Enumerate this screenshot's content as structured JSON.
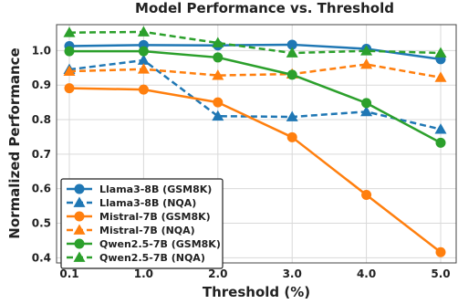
{
  "chart_data": {
    "type": "line",
    "title": "Model Performance vs. Threshold",
    "xlabel": "Threshold (%)",
    "ylabel": "Normalized Performance",
    "x": [
      0.1,
      1.0,
      2.0,
      3.0,
      4.0,
      5.0
    ],
    "x_tick_labels": [
      "0.1",
      "1.0",
      "2.0",
      "3.0",
      "4.0",
      "5.0"
    ],
    "y_ticks": [
      0.4,
      0.5,
      0.6,
      0.7,
      0.8,
      0.9,
      1.0
    ],
    "y_tick_labels": [
      "0.4",
      "0.5",
      "0.6",
      "0.7",
      "0.8",
      "0.9",
      "1.0"
    ],
    "ylim": [
      0.385,
      1.075
    ],
    "grid": true,
    "legend_position": "bottom-left",
    "series": [
      {
        "name": "Llama3-8B (GSM8K)",
        "color": "#1f77b4",
        "marker": "circle",
        "style": "solid",
        "values": [
          1.013,
          1.016,
          1.015,
          1.017,
          1.005,
          0.975
        ]
      },
      {
        "name": "Llama3-8B (NQA)",
        "color": "#1f77b4",
        "marker": "triangle",
        "style": "dashed",
        "values": [
          0.945,
          0.972,
          0.81,
          0.808,
          0.823,
          0.772
        ]
      },
      {
        "name": "Mistral-7B (GSM8K)",
        "color": "#ff7f0e",
        "marker": "circle",
        "style": "solid",
        "values": [
          0.891,
          0.887,
          0.85,
          0.749,
          0.582,
          0.416
        ]
      },
      {
        "name": "Mistral-7B (NQA)",
        "color": "#ff7f0e",
        "marker": "triangle",
        "style": "dashed",
        "values": [
          0.94,
          0.946,
          0.928,
          0.932,
          0.96,
          0.922
        ]
      },
      {
        "name": "Qwen2.5-7B (GSM8K)",
        "color": "#2ca02c",
        "marker": "circle",
        "style": "solid",
        "values": [
          0.998,
          0.998,
          0.98,
          0.93,
          0.848,
          0.733
        ]
      },
      {
        "name": "Qwen2.5-7B (NQA)",
        "color": "#2ca02c",
        "marker": "triangle",
        "style": "dashed",
        "values": [
          1.052,
          1.054,
          1.022,
          0.993,
          0.999,
          0.993
        ]
      }
    ]
  }
}
